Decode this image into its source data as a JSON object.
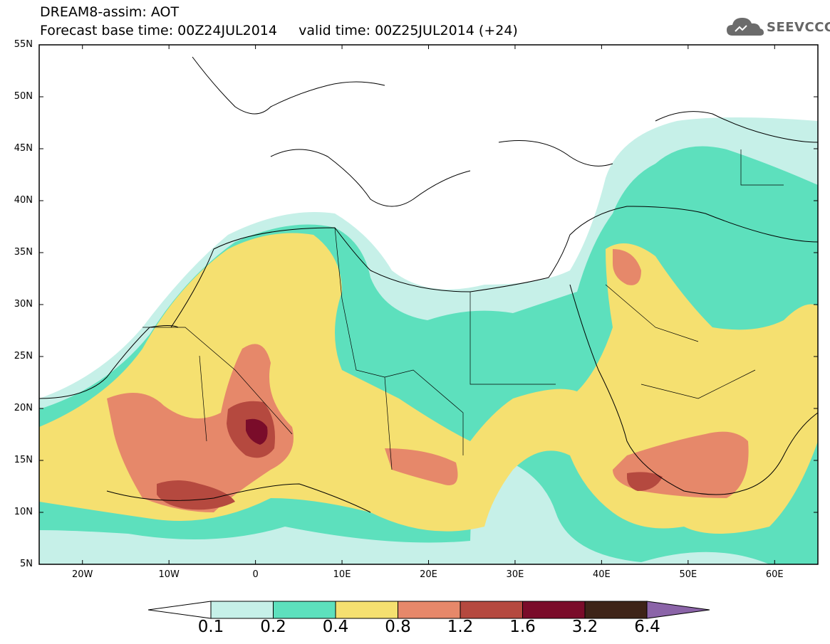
{
  "header": {
    "line1": "DREAM8-assim: AOT",
    "line2": "Forecast base time: 00Z24JUL2014     valid time: 00Z25JUL2014 (+24)"
  },
  "logo": {
    "text": "SEEVCCC",
    "icon": "cloud-icon"
  },
  "map": {
    "lon_range": [
      -25,
      65
    ],
    "lat_range": [
      5,
      55
    ],
    "lat_labels": [
      "55N",
      "50N",
      "45N",
      "40N",
      "35N",
      "30N",
      "25N",
      "20N",
      "15N",
      "10N",
      "5N"
    ],
    "lon_labels": [
      "20W",
      "10W",
      "0",
      "10E",
      "20E",
      "30E",
      "40E",
      "50E",
      "60E"
    ]
  },
  "colorbar": {
    "labels": [
      "0.1",
      "0.2",
      "0.4",
      "0.8",
      "1.2",
      "1.6",
      "3.2",
      "6.4"
    ],
    "colors": [
      "#c6f0e8",
      "#5de0bd",
      "#f5e070",
      "#e6886a",
      "#b5493f",
      "#7a0c2a",
      "#3e2418",
      "#8b64a8"
    ]
  },
  "colors": {
    "c1": "#c6f0e8",
    "c2": "#5de0bd",
    "c3": "#f5e070",
    "c4": "#e6886a",
    "c5": "#b5493f",
    "c6": "#7a0c2a"
  }
}
